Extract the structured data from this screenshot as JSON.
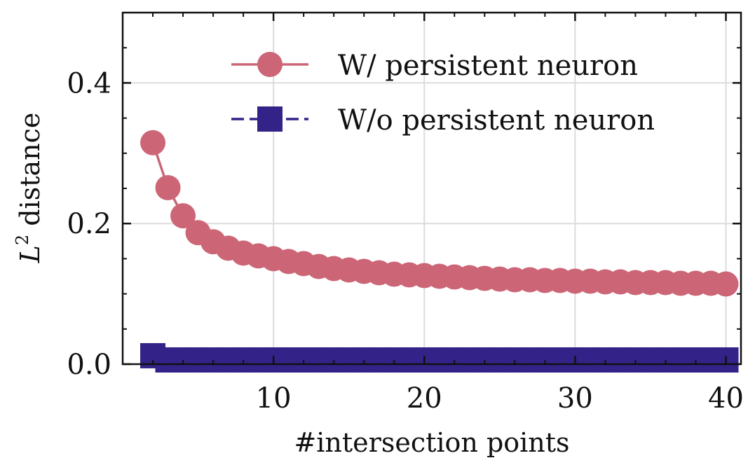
{
  "chart_data": {
    "type": "line",
    "title": "",
    "xlabel": "#intersection points",
    "ylabel": {
      "symbol": "L",
      "superscript": "2",
      "text": "distance"
    },
    "xlim": [
      0,
      41
    ],
    "ylim": [
      0,
      0.5
    ],
    "xticks": [
      10,
      20,
      30,
      40
    ],
    "yticks": [
      0.0,
      0.2,
      0.4
    ],
    "ytick_labels": [
      "0.0",
      "0.2",
      "0.4"
    ],
    "grid": true,
    "legend_position": "top-right",
    "x": [
      2,
      3,
      4,
      5,
      6,
      7,
      8,
      9,
      10,
      11,
      12,
      13,
      14,
      15,
      16,
      17,
      18,
      19,
      20,
      21,
      22,
      23,
      24,
      25,
      26,
      27,
      28,
      29,
      30,
      31,
      32,
      33,
      34,
      35,
      36,
      37,
      38,
      39,
      40
    ],
    "series": [
      {
        "name": "W/ persistent neuron",
        "color": "#cc6677",
        "marker": "circle",
        "linestyle": "solid",
        "values": [
          0.315,
          0.251,
          0.211,
          0.187,
          0.174,
          0.165,
          0.158,
          0.154,
          0.15,
          0.146,
          0.143,
          0.139,
          0.136,
          0.134,
          0.132,
          0.13,
          0.128,
          0.127,
          0.126,
          0.125,
          0.124,
          0.123,
          0.122,
          0.121,
          0.12,
          0.12,
          0.119,
          0.119,
          0.118,
          0.118,
          0.117,
          0.117,
          0.116,
          0.116,
          0.116,
          0.115,
          0.115,
          0.115,
          0.114
        ]
      },
      {
        "name": "W/o persistent neuron",
        "color": "#332288",
        "marker": "square",
        "linestyle": "dashed",
        "values": [
          0.012,
          0.006,
          0.006,
          0.006,
          0.006,
          0.006,
          0.006,
          0.006,
          0.006,
          0.006,
          0.006,
          0.006,
          0.006,
          0.006,
          0.006,
          0.006,
          0.006,
          0.006,
          0.006,
          0.006,
          0.006,
          0.006,
          0.006,
          0.006,
          0.006,
          0.006,
          0.006,
          0.006,
          0.006,
          0.006,
          0.006,
          0.006,
          0.006,
          0.006,
          0.006,
          0.006,
          0.006,
          0.006,
          0.006
        ]
      }
    ]
  }
}
